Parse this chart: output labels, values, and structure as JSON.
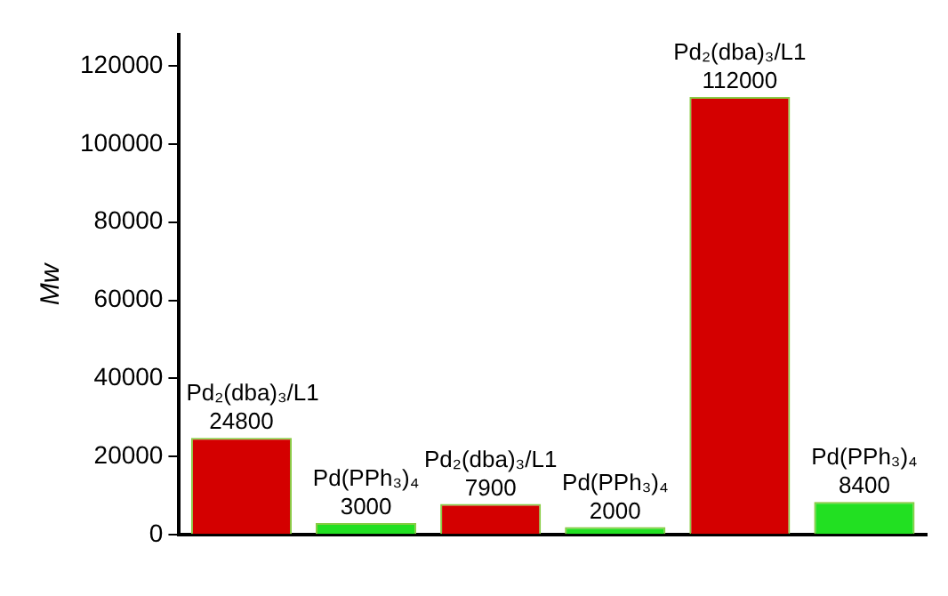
{
  "chart_data": {
    "type": "bar",
    "ylabel": "Mw",
    "categories": [
      null,
      null,
      null,
      null,
      null,
      null
    ],
    "values": [
      24800,
      3000,
      7900,
      2000,
      112000,
      8400
    ],
    "colors": [
      "#d40000",
      "#22e022",
      "#d40000",
      "#22e022",
      "#d40000",
      "#22e022"
    ],
    "ylim": [
      0,
      128000
    ],
    "yticks": [
      0,
      20000,
      40000,
      60000,
      80000,
      100000,
      120000
    ],
    "data_labels": true,
    "annotations": [
      "Pd₂(dba)₃/L1",
      "Pd(PPh₃)₄",
      "Pd₂(dba)₃/L1",
      "Pd(PPh₃)₄",
      "Pd₂(dba)₃/L1",
      "Pd(PPh₃)₄"
    ]
  }
}
